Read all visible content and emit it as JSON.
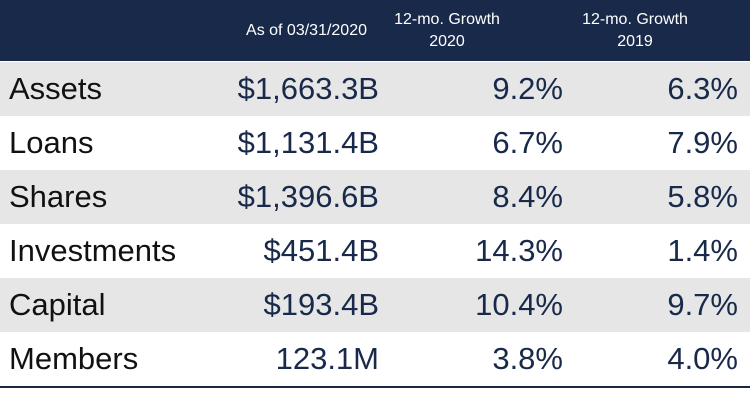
{
  "chart_data": {
    "type": "table",
    "columns": [
      "",
      "As of 03/31/2020",
      "12-mo. Growth 2020",
      "12-mo. Growth 2019"
    ],
    "header": {
      "col1": "As of 03/31/2020",
      "col2_line1": "12-mo. Growth",
      "col2_line2": "2020",
      "col3_line1": "12-mo. Growth",
      "col3_line2": "2019"
    },
    "rows": [
      {
        "label": "Assets",
        "as_of": "$1,663.3B",
        "growth_2020": "9.2%",
        "growth_2019": "6.3%"
      },
      {
        "label": "Loans",
        "as_of": "$1,131.4B",
        "growth_2020": "6.7%",
        "growth_2019": "7.9%"
      },
      {
        "label": "Shares",
        "as_of": "$1,396.6B",
        "growth_2020": "8.4%",
        "growth_2019": "5.8%"
      },
      {
        "label": "Investments",
        "as_of": "$451.4B",
        "growth_2020": "14.3%",
        "growth_2019": "1.4%"
      },
      {
        "label": "Capital",
        "as_of": "$193.4B",
        "growth_2020": "10.4%",
        "growth_2019": "9.7%"
      },
      {
        "label": "Members",
        "as_of": "123.1M",
        "growth_2020": "3.8%",
        "growth_2019": "4.0%"
      }
    ]
  },
  "colors": {
    "header_bg": "#18294a",
    "header_text": "#ffffff",
    "shaded_row": "#e6e6e6",
    "value_text": "#18294a"
  }
}
